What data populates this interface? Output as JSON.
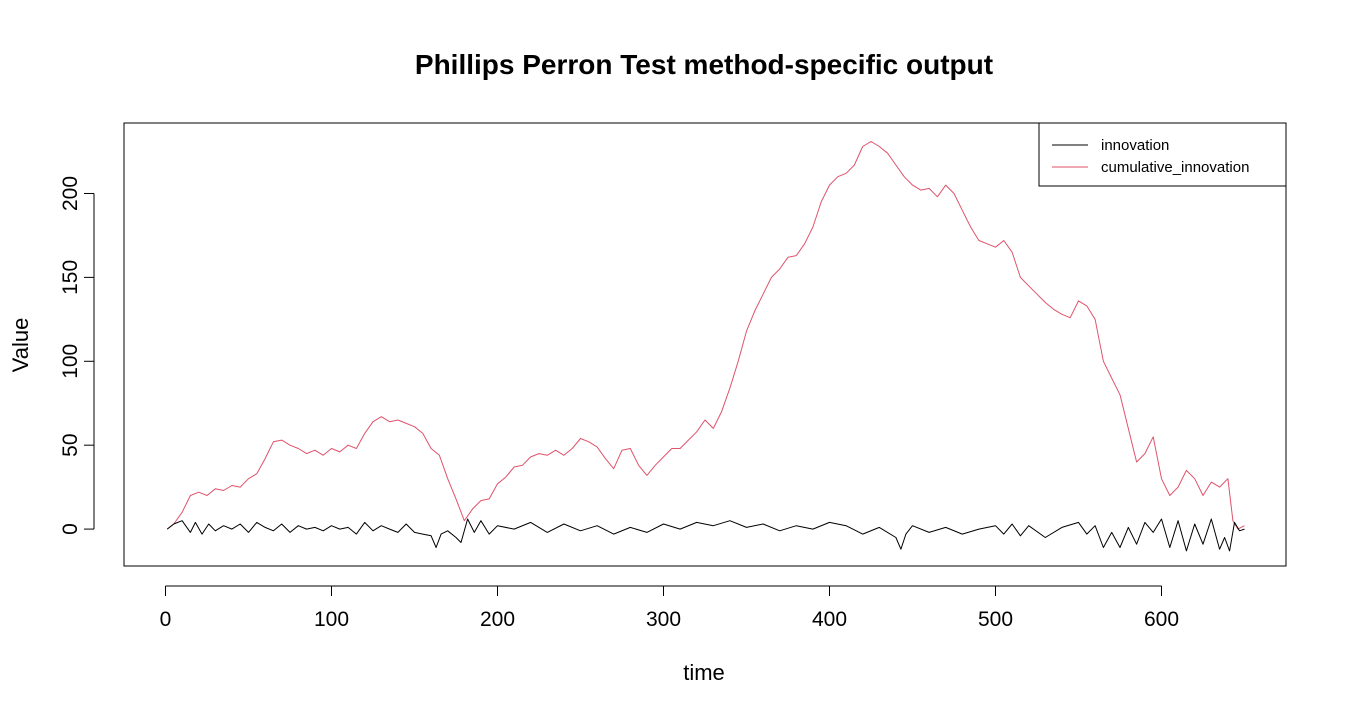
{
  "chart_data": {
    "type": "line",
    "title": "Phillips Perron Test method-specific output",
    "xlabel": "time",
    "ylabel": "Value",
    "xlim": [
      -25,
      675
    ],
    "ylim": [
      -22,
      242
    ],
    "x_ticks": [
      0,
      100,
      200,
      300,
      400,
      500,
      600
    ],
    "y_ticks": [
      0,
      50,
      100,
      150,
      200
    ],
    "grid": false,
    "legend_position": "top-right",
    "series": [
      {
        "name": "innovation",
        "color": "#000000",
        "x": [
          1,
          5,
          10,
          15,
          18,
          22,
          26,
          30,
          35,
          40,
          45,
          50,
          55,
          60,
          65,
          70,
          75,
          80,
          85,
          90,
          95,
          100,
          105,
          110,
          115,
          120,
          125,
          130,
          135,
          140,
          145,
          150,
          155,
          160,
          163,
          166,
          170,
          175,
          178,
          182,
          186,
          190,
          195,
          200,
          210,
          220,
          230,
          240,
          250,
          260,
          270,
          280,
          290,
          300,
          310,
          320,
          330,
          340,
          350,
          360,
          370,
          380,
          390,
          400,
          410,
          420,
          430,
          440,
          443,
          446,
          450,
          460,
          470,
          480,
          490,
          500,
          505,
          510,
          515,
          520,
          530,
          540,
          550,
          555,
          560,
          565,
          570,
          575,
          580,
          585,
          590,
          595,
          600,
          605,
          610,
          615,
          620,
          625,
          630,
          635,
          638,
          641,
          644,
          647,
          650
        ],
        "y": [
          0,
          3,
          5,
          -2,
          4,
          -3,
          3,
          -1,
          2,
          0,
          3,
          -2,
          4,
          1,
          -1,
          3,
          -2,
          2,
          0,
          1,
          -1,
          2,
          0,
          1,
          -3,
          4,
          -1,
          2,
          0,
          -2,
          3,
          -2,
          -3,
          -4,
          -11,
          -3,
          -1,
          -5,
          -8,
          6,
          -2,
          5,
          -3,
          2,
          0,
          4,
          -2,
          3,
          -1,
          2,
          -3,
          1,
          -2,
          3,
          0,
          4,
          2,
          5,
          1,
          3,
          -1,
          2,
          0,
          4,
          2,
          -3,
          1,
          -5,
          -12,
          -3,
          2,
          -2,
          1,
          -3,
          0,
          2,
          -3,
          3,
          -4,
          2,
          -5,
          1,
          4,
          -3,
          2,
          -11,
          -2,
          -11,
          1,
          -9,
          4,
          -2,
          6,
          -11,
          5,
          -13,
          3,
          -9,
          6,
          -12,
          -5,
          -13,
          4,
          -1,
          0
        ]
      },
      {
        "name": "cumulative_innovation",
        "color": "#DF536B",
        "x": [
          1,
          5,
          10,
          15,
          20,
          25,
          30,
          35,
          40,
          45,
          50,
          55,
          60,
          65,
          70,
          75,
          80,
          85,
          90,
          95,
          100,
          105,
          110,
          115,
          120,
          125,
          130,
          135,
          140,
          145,
          150,
          155,
          160,
          165,
          170,
          175,
          180,
          185,
          190,
          195,
          200,
          205,
          210,
          215,
          220,
          225,
          230,
          235,
          240,
          245,
          250,
          255,
          260,
          265,
          270,
          275,
          280,
          285,
          290,
          295,
          300,
          305,
          310,
          315,
          320,
          325,
          330,
          335,
          340,
          345,
          350,
          355,
          360,
          365,
          370,
          375,
          380,
          385,
          390,
          395,
          400,
          405,
          410,
          415,
          420,
          425,
          430,
          435,
          440,
          445,
          450,
          455,
          460,
          465,
          470,
          475,
          480,
          485,
          490,
          495,
          500,
          505,
          510,
          515,
          520,
          525,
          530,
          535,
          540,
          545,
          550,
          555,
          560,
          565,
          570,
          575,
          580,
          585,
          590,
          595,
          600,
          605,
          610,
          615,
          620,
          625,
          630,
          635,
          640,
          643,
          646,
          650
        ],
        "y": [
          0,
          3,
          10,
          20,
          22,
          20,
          24,
          23,
          26,
          25,
          30,
          33,
          42,
          52,
          53,
          50,
          48,
          45,
          47,
          44,
          48,
          46,
          50,
          48,
          57,
          64,
          67,
          64,
          65,
          63,
          61,
          57,
          48,
          44,
          30,
          18,
          5,
          12,
          17,
          18,
          27,
          31,
          37,
          38,
          43,
          45,
          44,
          47,
          44,
          48,
          54,
          52,
          49,
          42,
          36,
          47,
          48,
          38,
          32,
          38,
          43,
          48,
          48,
          53,
          58,
          65,
          60,
          70,
          84,
          100,
          118,
          130,
          140,
          150,
          155,
          162,
          163,
          170,
          180,
          195,
          205,
          210,
          212,
          217,
          228,
          231,
          228,
          224,
          217,
          210,
          205,
          202,
          203,
          198,
          205,
          200,
          190,
          180,
          172,
          170,
          168,
          172,
          165,
          150,
          145,
          140,
          135,
          131,
          128,
          126,
          136,
          133,
          125,
          100,
          90,
          80,
          60,
          40,
          45,
          55,
          30,
          20,
          25,
          35,
          30,
          20,
          28,
          25,
          30,
          5,
          0,
          2
        ]
      }
    ]
  }
}
